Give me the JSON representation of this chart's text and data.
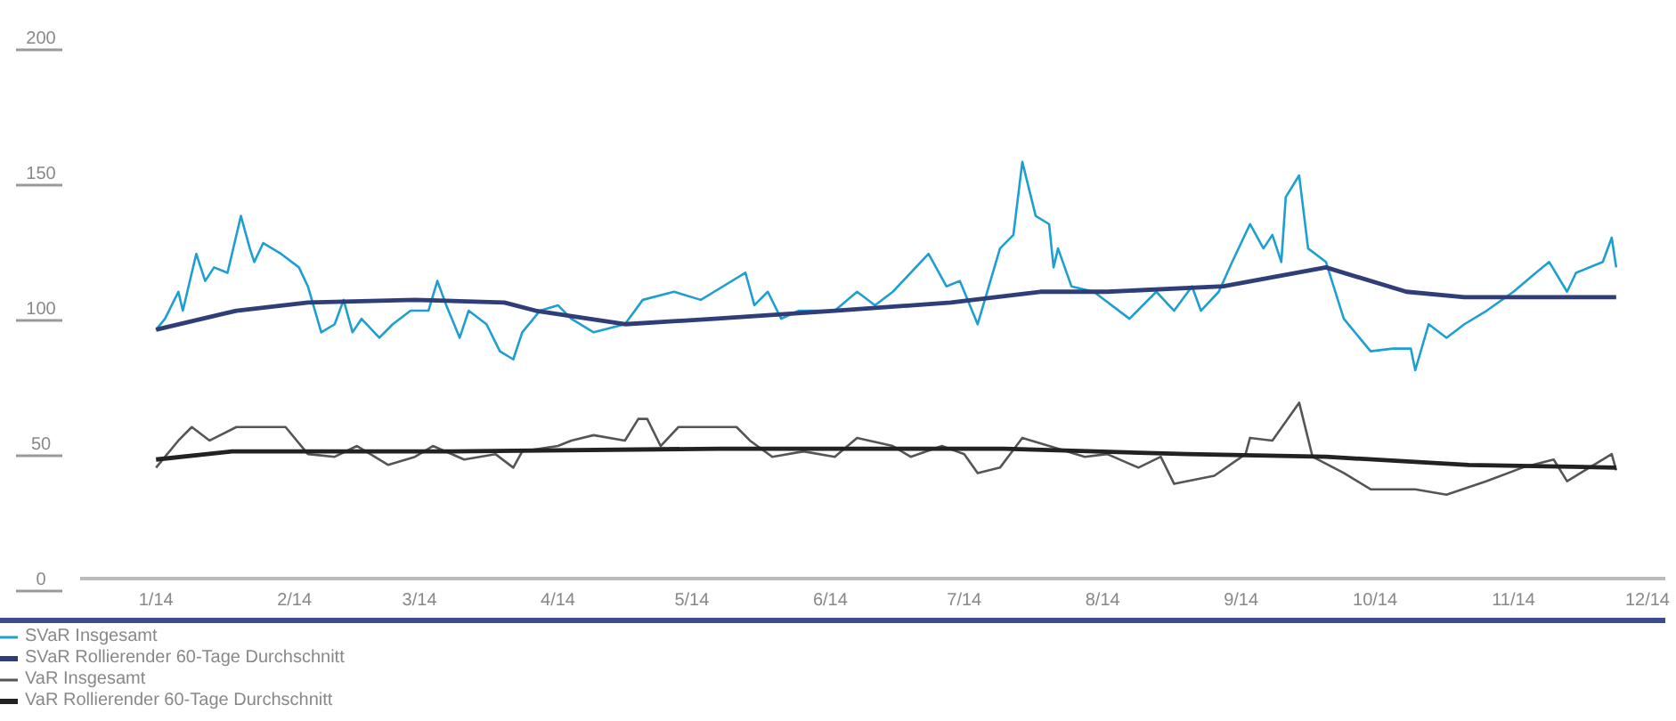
{
  "chart_data": {
    "type": "line",
    "legend": "bottom left",
    "ylim": [
      0,
      200
    ],
    "yticks": [
      0,
      50,
      100,
      150,
      200
    ],
    "xlim": [
      "2013-12-15",
      "2014-12-05"
    ],
    "xticks": [
      {
        "value": "2014-01-01",
        "label": "1/14"
      },
      {
        "value": "2014-02-01",
        "label": "2/14"
      },
      {
        "value": "2014-03-01",
        "label": "3/14"
      },
      {
        "value": "2014-04-01",
        "label": "4/14"
      },
      {
        "value": "2014-05-01",
        "label": "5/14"
      },
      {
        "value": "2014-06-01",
        "label": "6/14"
      },
      {
        "value": "2014-07-01",
        "label": "7/14"
      },
      {
        "value": "2014-08-01",
        "label": "8/14"
      },
      {
        "value": "2014-09-01",
        "label": "9/14"
      },
      {
        "value": "2014-10-01",
        "label": "10/14"
      },
      {
        "value": "2014-11-01",
        "label": "11/14"
      },
      {
        "value": "2014-12-01",
        "label": "12/14"
      }
    ],
    "series": [
      {
        "name": "SVaR Insgesamt",
        "color": "#1e9fd2",
        "x": [
          "2014-01-01",
          "2014-01-03",
          "2014-01-06",
          "2014-01-07",
          "2014-01-10",
          "2014-01-12",
          "2014-01-14",
          "2014-01-17",
          "2014-01-20",
          "2014-01-22",
          "2014-01-23",
          "2014-01-25",
          "2014-01-29",
          "2014-02-02",
          "2014-02-04",
          "2014-02-07",
          "2014-02-10",
          "2014-02-12",
          "2014-02-14",
          "2014-02-16",
          "2014-02-20",
          "2014-02-23",
          "2014-02-27",
          "2014-03-03",
          "2014-03-05",
          "2014-03-07",
          "2014-03-10",
          "2014-03-12",
          "2014-03-16",
          "2014-03-19",
          "2014-03-22",
          "2014-03-24",
          "2014-03-28",
          "2014-04-01",
          "2014-04-04",
          "2014-04-09",
          "2014-04-16",
          "2014-04-20",
          "2014-04-27",
          "2014-05-03",
          "2014-05-06",
          "2014-05-13",
          "2014-05-15",
          "2014-05-18",
          "2014-05-21",
          "2014-05-25",
          "2014-06-02",
          "2014-06-07",
          "2014-06-11",
          "2014-06-15",
          "2014-06-23",
          "2014-06-27",
          "2014-06-30",
          "2014-07-04",
          "2014-07-09",
          "2014-07-12",
          "2014-07-14",
          "2014-07-17",
          "2014-07-20",
          "2014-07-21",
          "2014-07-22",
          "2014-07-25",
          "2014-07-30",
          "2014-08-07",
          "2014-08-13",
          "2014-08-17",
          "2014-08-21",
          "2014-08-23",
          "2014-08-27",
          "2014-08-30",
          "2014-09-03",
          "2014-09-06",
          "2014-09-08",
          "2014-09-10",
          "2014-09-11",
          "2014-09-14",
          "2014-09-16",
          "2014-09-20",
          "2014-09-24",
          "2014-09-30",
          "2014-10-05",
          "2014-10-09",
          "2014-10-10",
          "2014-10-13",
          "2014-10-17",
          "2014-10-21",
          "2014-10-26",
          "2014-11-01",
          "2014-11-06",
          "2014-11-09",
          "2014-11-13",
          "2014-11-15",
          "2014-11-21",
          "2014-11-23",
          "2014-11-24"
        ],
        "values": [
          92,
          96,
          106,
          99,
          120,
          110,
          115,
          113,
          134,
          122,
          117,
          124,
          120,
          115,
          108,
          91,
          94,
          103,
          91,
          96,
          89,
          94,
          99,
          99,
          110,
          101,
          89,
          99,
          94,
          84,
          81,
          91,
          99,
          101,
          96,
          91,
          94,
          103,
          106,
          103,
          106,
          113,
          101,
          106,
          96,
          99,
          99,
          106,
          101,
          106,
          120,
          108,
          110,
          94,
          122,
          127,
          154,
          134,
          131,
          115,
          122,
          108,
          106,
          96,
          106,
          99,
          108,
          99,
          106,
          117,
          131,
          122,
          127,
          117,
          141,
          149,
          122,
          117,
          96,
          84,
          85,
          85,
          77,
          94,
          89,
          94,
          99,
          106,
          113,
          117,
          106,
          113,
          117,
          126,
          115
        ]
      },
      {
        "name": "SVaR Rollierender 60-Tage Durchschnitt",
        "color": "#2f3d78",
        "x": [
          "2014-01-01",
          "2014-01-19",
          "2014-02-04",
          "2014-02-28",
          "2014-03-20",
          "2014-03-27",
          "2014-04-16",
          "2014-05-06",
          "2014-06-02",
          "2014-06-28",
          "2014-07-18",
          "2014-08-02",
          "2014-08-28",
          "2014-09-20",
          "2014-10-08",
          "2014-10-21",
          "2014-11-24"
        ],
        "values": [
          92,
          99,
          102,
          103,
          102,
          99,
          94,
          96,
          99,
          102,
          106,
          106,
          108,
          115,
          106,
          104,
          104
        ]
      },
      {
        "name": "VaR Insgesamt",
        "color": "#555555",
        "x": [
          "2014-01-01",
          "2014-01-06",
          "2014-01-09",
          "2014-01-13",
          "2014-01-19",
          "2014-01-25",
          "2014-01-30",
          "2014-02-04",
          "2014-02-10",
          "2014-02-15",
          "2014-02-22",
          "2014-02-28",
          "2014-03-04",
          "2014-03-11",
          "2014-03-18",
          "2014-03-22",
          "2014-03-24",
          "2014-04-01",
          "2014-04-04",
          "2014-04-09",
          "2014-04-16",
          "2014-04-19",
          "2014-04-21",
          "2014-04-24",
          "2014-04-28",
          "2014-05-03",
          "2014-05-11",
          "2014-05-14",
          "2014-05-19",
          "2014-05-26",
          "2014-06-02",
          "2014-06-07",
          "2014-06-15",
          "2014-06-19",
          "2014-06-26",
          "2014-07-01",
          "2014-07-04",
          "2014-07-09",
          "2014-07-14",
          "2014-07-20",
          "2014-07-28",
          "2014-08-02",
          "2014-08-09",
          "2014-08-14",
          "2014-08-17",
          "2014-08-26",
          "2014-09-02",
          "2014-09-03",
          "2014-09-08",
          "2014-09-14",
          "2014-09-17",
          "2014-09-24",
          "2014-09-30",
          "2014-10-10",
          "2014-10-17",
          "2014-10-26",
          "2014-11-03",
          "2014-11-10",
          "2014-11-13",
          "2014-11-17",
          "2014-11-23",
          "2014-11-24"
        ],
        "values": [
          41,
          51,
          56,
          51,
          56,
          56,
          56,
          46,
          45,
          49,
          42,
          45,
          49,
          44,
          46,
          41,
          47,
          49,
          51,
          53,
          51,
          59,
          59,
          49,
          56,
          56,
          56,
          51,
          45,
          47,
          45,
          52,
          49,
          45,
          49,
          46,
          39,
          41,
          52,
          49,
          45,
          46,
          41,
          45,
          35,
          38,
          46,
          52,
          51,
          65,
          45,
          39,
          33,
          33,
          31,
          36,
          41,
          44,
          36,
          40,
          46,
          40
        ]
      },
      {
        "name": "VaR Rollierender 60-Tage Durchschnitt",
        "color": "#222222",
        "x": [
          "2014-01-01",
          "2014-01-18",
          "2014-03-07",
          "2014-05-07",
          "2014-07-10",
          "2014-08-20",
          "2014-09-20",
          "2014-10-22",
          "2014-11-24"
        ],
        "values": [
          44,
          47,
          47,
          48,
          48,
          46,
          45,
          42,
          41
        ]
      }
    ]
  }
}
